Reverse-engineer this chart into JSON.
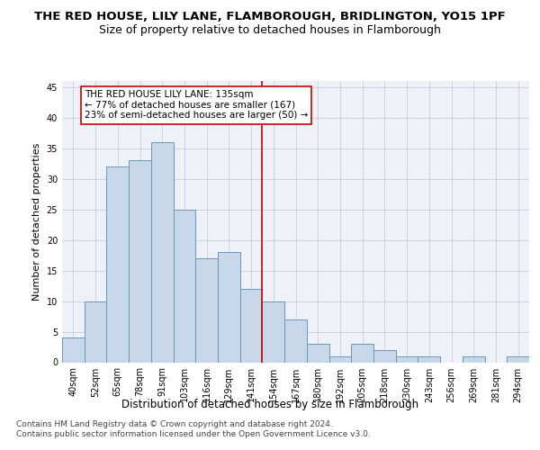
{
  "title_line1": "THE RED HOUSE, LILY LANE, FLAMBOROUGH, BRIDLINGTON, YO15 1PF",
  "title_line2": "Size of property relative to detached houses in Flamborough",
  "xlabel": "Distribution of detached houses by size in Flamborough",
  "ylabel": "Number of detached properties",
  "categories": [
    "40sqm",
    "52sqm",
    "65sqm",
    "78sqm",
    "91sqm",
    "103sqm",
    "116sqm",
    "129sqm",
    "141sqm",
    "154sqm",
    "167sqm",
    "180sqm",
    "192sqm",
    "205sqm",
    "218sqm",
    "230sqm",
    "243sqm",
    "256sqm",
    "269sqm",
    "281sqm",
    "294sqm"
  ],
  "values": [
    4,
    10,
    32,
    33,
    36,
    25,
    17,
    18,
    12,
    10,
    7,
    3,
    1,
    3,
    2,
    1,
    1,
    0,
    1,
    0,
    1
  ],
  "bar_color": "#c8d8e8",
  "bar_edge_color": "#6699bb",
  "ylim": [
    0,
    46
  ],
  "yticks": [
    0,
    5,
    10,
    15,
    20,
    25,
    30,
    35,
    40,
    45
  ],
  "property_line_x": 8.5,
  "property_line_color": "#cc0000",
  "annotation_text": "THE RED HOUSE LILY LANE: 135sqm\n← 77% of detached houses are smaller (167)\n23% of semi-detached houses are larger (50) →",
  "annotation_box_color": "#ffffff",
  "annotation_box_edge": "#cc0000",
  "footer_text": "Contains HM Land Registry data © Crown copyright and database right 2024.\nContains public sector information licensed under the Open Government Licence v3.0.",
  "bg_color": "#eef2f8",
  "grid_color": "#c8ccd8",
  "title_fontsize": 9.5,
  "subtitle_fontsize": 9,
  "axis_label_fontsize": 8,
  "tick_fontsize": 7,
  "annotation_fontsize": 7.5,
  "footer_fontsize": 6.5
}
